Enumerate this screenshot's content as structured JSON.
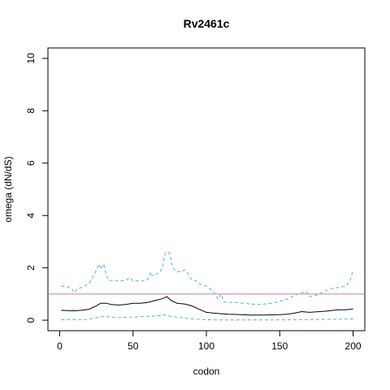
{
  "chart_data": {
    "type": "line",
    "title": "Rv2461c",
    "xlabel": "codon",
    "ylabel": "omega (dN/dS)",
    "xlim": [
      -8,
      208
    ],
    "ylim": [
      -0.4,
      10.4
    ],
    "xticks": [
      0,
      50,
      100,
      150,
      200
    ],
    "yticks": [
      0,
      2,
      4,
      6,
      8,
      10
    ],
    "reference_line": {
      "y": 1,
      "color": "#cc79a7"
    },
    "grid": false,
    "legend": "none",
    "series": [
      {
        "role": "estimate",
        "color": "#000000",
        "dash": "solid",
        "x": [
          1,
          5,
          10,
          15,
          20,
          25,
          28,
          32,
          35,
          40,
          45,
          50,
          55,
          60,
          65,
          70,
          73,
          76,
          80,
          85,
          90,
          95,
          100,
          105,
          110,
          115,
          120,
          130,
          140,
          150,
          155,
          160,
          165,
          170,
          175,
          180,
          185,
          190,
          195,
          200
        ],
        "y": [
          0.38,
          0.37,
          0.36,
          0.38,
          0.42,
          0.55,
          0.65,
          0.65,
          0.6,
          0.58,
          0.6,
          0.65,
          0.65,
          0.68,
          0.75,
          0.82,
          0.9,
          0.75,
          0.65,
          0.62,
          0.55,
          0.42,
          0.3,
          0.27,
          0.25,
          0.23,
          0.22,
          0.2,
          0.2,
          0.21,
          0.23,
          0.27,
          0.33,
          0.3,
          0.32,
          0.34,
          0.37,
          0.4,
          0.4,
          0.43
        ]
      },
      {
        "role": "upper-bound",
        "color": "#4eb3e6",
        "dash": "dashed",
        "x": [
          1,
          5,
          8,
          10,
          12,
          15,
          20,
          24,
          27,
          28,
          30,
          31,
          33,
          35,
          40,
          45,
          48,
          50,
          55,
          60,
          62,
          63,
          65,
          68,
          70,
          72,
          74,
          75,
          77,
          80,
          83,
          85,
          88,
          90,
          93,
          95,
          100,
          105,
          108,
          110,
          112,
          115,
          120,
          125,
          130,
          135,
          140,
          145,
          150,
          155,
          160,
          165,
          168,
          170,
          175,
          180,
          185,
          190,
          195,
          198,
          200
        ],
        "y": [
          1.3,
          1.28,
          1.22,
          1.05,
          1.2,
          1.25,
          1.4,
          1.8,
          2.15,
          1.95,
          2.15,
          1.9,
          1.55,
          1.5,
          1.5,
          1.52,
          1.62,
          1.5,
          1.5,
          1.55,
          1.85,
          1.7,
          1.75,
          1.8,
          2.0,
          2.58,
          2.6,
          2.55,
          2.0,
          1.85,
          1.85,
          1.92,
          1.75,
          1.55,
          1.5,
          1.4,
          1.3,
          1.1,
          0.8,
          1.0,
          0.7,
          0.68,
          0.68,
          0.65,
          0.62,
          0.6,
          0.62,
          0.65,
          0.72,
          0.8,
          0.95,
          1.05,
          1.1,
          0.9,
          0.95,
          1.1,
          1.2,
          1.25,
          1.3,
          1.5,
          1.92
        ]
      },
      {
        "role": "lower-bound",
        "color": "#4eb3e6",
        "dash": "dashed",
        "x": [
          1,
          10,
          20,
          25,
          30,
          35,
          40,
          50,
          60,
          70,
          72,
          75,
          80,
          90,
          100,
          110,
          120,
          140,
          160,
          180,
          200
        ],
        "y": [
          0.02,
          0.02,
          0.03,
          0.1,
          0.15,
          0.12,
          0.1,
          0.12,
          0.15,
          0.18,
          0.22,
          0.15,
          0.12,
          0.05,
          0.02,
          0.01,
          0.01,
          0.01,
          0.02,
          0.03,
          0.05
        ]
      }
    ]
  }
}
